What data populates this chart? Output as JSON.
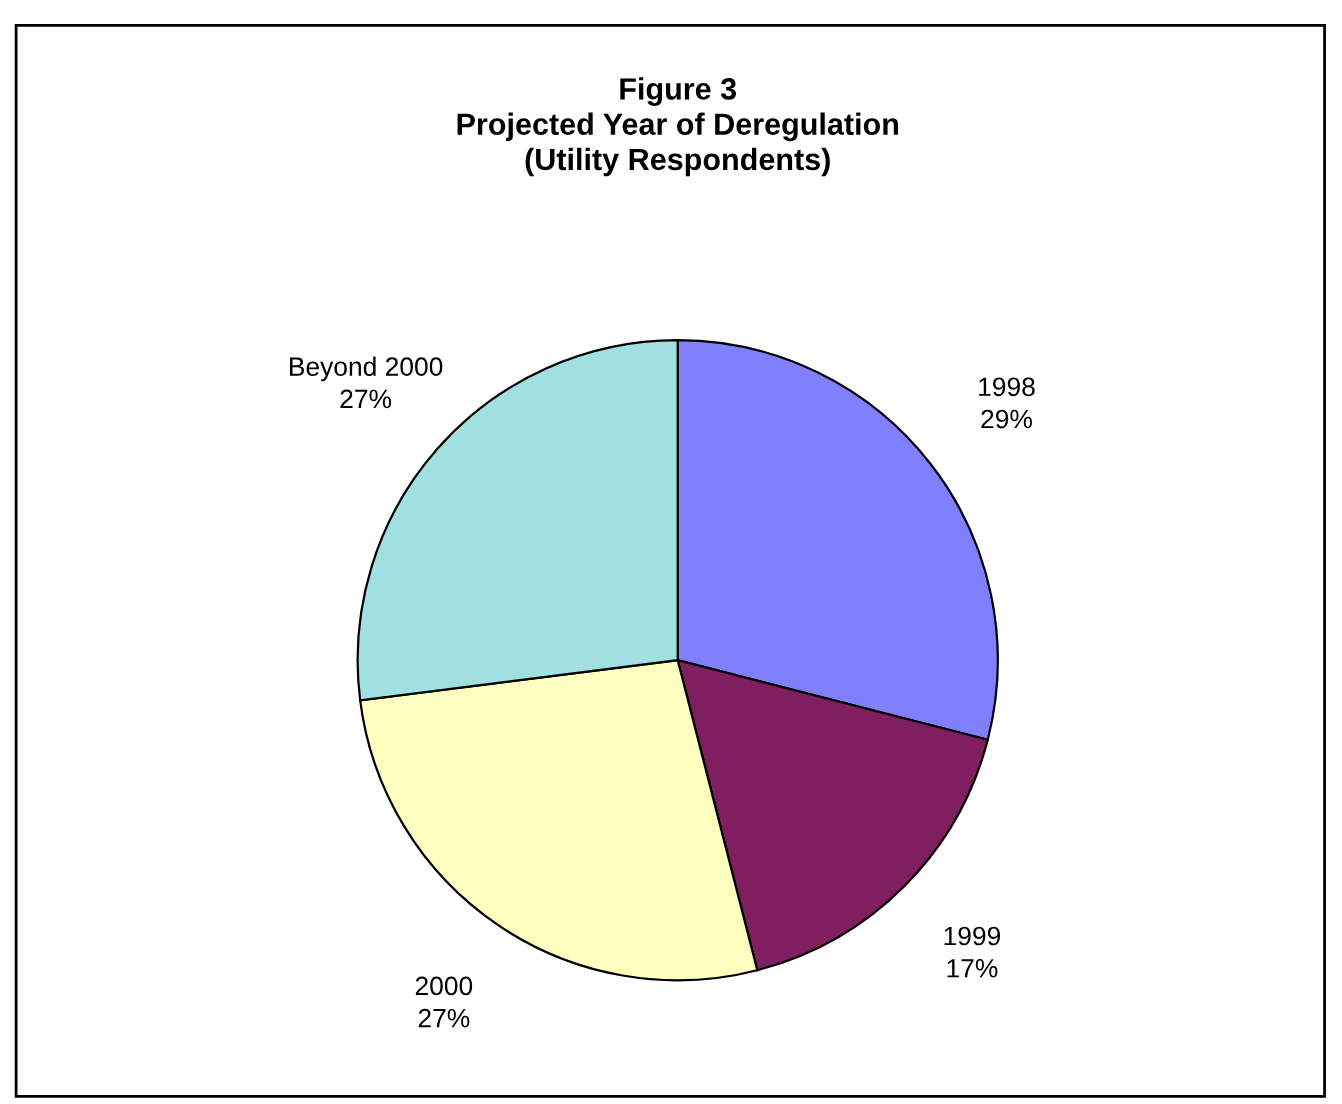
{
  "chart_data": {
    "type": "pie",
    "title": "Figure 3\nProjected Year of Deregulation\n(Utility Respondents)",
    "categories": [
      "1998",
      "1999",
      "2000",
      "Beyond 2000"
    ],
    "values": [
      29,
      17,
      27,
      27
    ],
    "value_labels": [
      "29%",
      "17%",
      "27%",
      "27%"
    ],
    "colors": [
      "#8080ff",
      "#7f1f5f",
      "#ffffc0",
      "#a0e0e0"
    ],
    "legend": false
  }
}
